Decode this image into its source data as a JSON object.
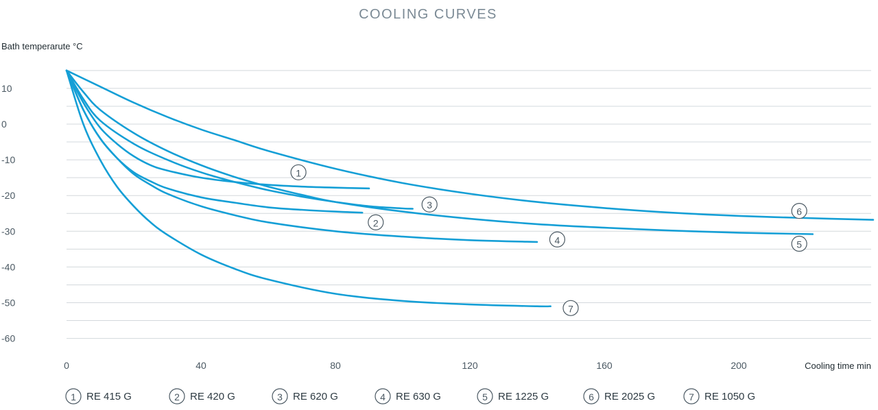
{
  "chart_data": {
    "type": "line",
    "title": "COOLING CURVES",
    "ylabel": "Bath temperarute °C",
    "xlabel": "Cooling time min",
    "xlim": [
      0,
      240
    ],
    "ylim": [
      -60,
      20
    ],
    "x_ticks": [
      0,
      40,
      80,
      120,
      160,
      200
    ],
    "y_ticks": [
      10,
      0,
      -10,
      -20,
      -30,
      -40,
      -50,
      -60
    ],
    "grid": true,
    "series": [
      {
        "marker": "1",
        "name": "RE 415 G",
        "x": [
          0,
          5,
          10,
          15,
          20,
          25,
          30,
          40,
          50,
          60,
          70,
          80,
          90
        ],
        "y": [
          15,
          6,
          -1,
          -5.5,
          -9,
          -11.5,
          -13,
          -15,
          -16.2,
          -17,
          -17.5,
          -17.8,
          -18
        ]
      },
      {
        "marker": "2",
        "name": "RE 420 G",
        "x": [
          0,
          5,
          10,
          15,
          20,
          25,
          30,
          40,
          50,
          60,
          70,
          80,
          88
        ],
        "y": [
          15,
          4,
          -4,
          -9.5,
          -13.5,
          -16,
          -18,
          -20.5,
          -22,
          -23.3,
          -24,
          -24.5,
          -24.8
        ]
      },
      {
        "marker": "3",
        "name": "RE 620 G",
        "x": [
          0,
          5,
          10,
          20,
          30,
          40,
          50,
          60,
          70,
          80,
          90,
          100,
          103
        ],
        "y": [
          15,
          7,
          1,
          -5.5,
          -10,
          -13.5,
          -16.2,
          -18.5,
          -20.3,
          -21.8,
          -23,
          -23.6,
          -23.7
        ]
      },
      {
        "marker": "4",
        "name": "RE 630 G",
        "x": [
          0,
          5,
          10,
          15,
          20,
          25,
          30,
          40,
          50,
          60,
          80,
          100,
          120,
          140
        ],
        "y": [
          15,
          4,
          -4,
          -9.5,
          -14,
          -17,
          -19.5,
          -23,
          -25.5,
          -27.5,
          -30,
          -31.5,
          -32.5,
          -33
        ]
      },
      {
        "marker": "5",
        "name": "RE 1225 G",
        "x": [
          0,
          5,
          10,
          20,
          30,
          40,
          50,
          60,
          70,
          80,
          100,
          120,
          140,
          160,
          180,
          200,
          222
        ],
        "y": [
          15,
          9,
          4,
          -2.5,
          -7.5,
          -11.5,
          -14.8,
          -17.5,
          -19.8,
          -21.8,
          -24.5,
          -26.5,
          -28,
          -29,
          -29.8,
          -30.4,
          -30.8
        ]
      },
      {
        "marker": "6",
        "name": "RE 2025 G",
        "x": [
          0,
          10,
          20,
          30,
          40,
          50,
          60,
          80,
          100,
          120,
          140,
          160,
          180,
          200,
          220,
          240
        ],
        "y": [
          15,
          10.5,
          6,
          2,
          -1.5,
          -4.5,
          -7.5,
          -12.5,
          -16.5,
          -19.5,
          -21.8,
          -23.5,
          -24.8,
          -25.7,
          -26.3,
          -26.8
        ]
      },
      {
        "marker": "7",
        "name": "RE 1050 G",
        "x": [
          0,
          5,
          10,
          15,
          20,
          25,
          30,
          40,
          50,
          60,
          80,
          100,
          120,
          140,
          144
        ],
        "y": [
          15,
          0,
          -10,
          -17.5,
          -23,
          -27.5,
          -31,
          -36.5,
          -40.5,
          -43.5,
          -47.5,
          -49.5,
          -50.5,
          -51,
          -51
        ]
      }
    ],
    "curve_labels": [
      {
        "marker": "1",
        "x": 69,
        "y": -13.5
      },
      {
        "marker": "2",
        "x": 92,
        "y": -27.5
      },
      {
        "marker": "3",
        "x": 108,
        "y": -22.5
      },
      {
        "marker": "4",
        "x": 146,
        "y": -32.3
      },
      {
        "marker": "5",
        "x": 218,
        "y": -33.5
      },
      {
        "marker": "6",
        "x": 218,
        "y": -24.3
      },
      {
        "marker": "7",
        "x": 150,
        "y": -51.5
      }
    ],
    "legend": [
      {
        "marker": "1",
        "label": "RE 415 G"
      },
      {
        "marker": "2",
        "label": "RE 420 G"
      },
      {
        "marker": "3",
        "label": "RE 620 G"
      },
      {
        "marker": "4",
        "label": "RE 630 G"
      },
      {
        "marker": "5",
        "label": "RE 1225 G"
      },
      {
        "marker": "6",
        "label": "RE 2025 G"
      },
      {
        "marker": "7",
        "label": "RE 1050 G"
      }
    ],
    "colors": {
      "line": "#159fd6",
      "grid": "#d3d8dc",
      "text": "#4b5963",
      "title": "#7b8a95"
    }
  }
}
